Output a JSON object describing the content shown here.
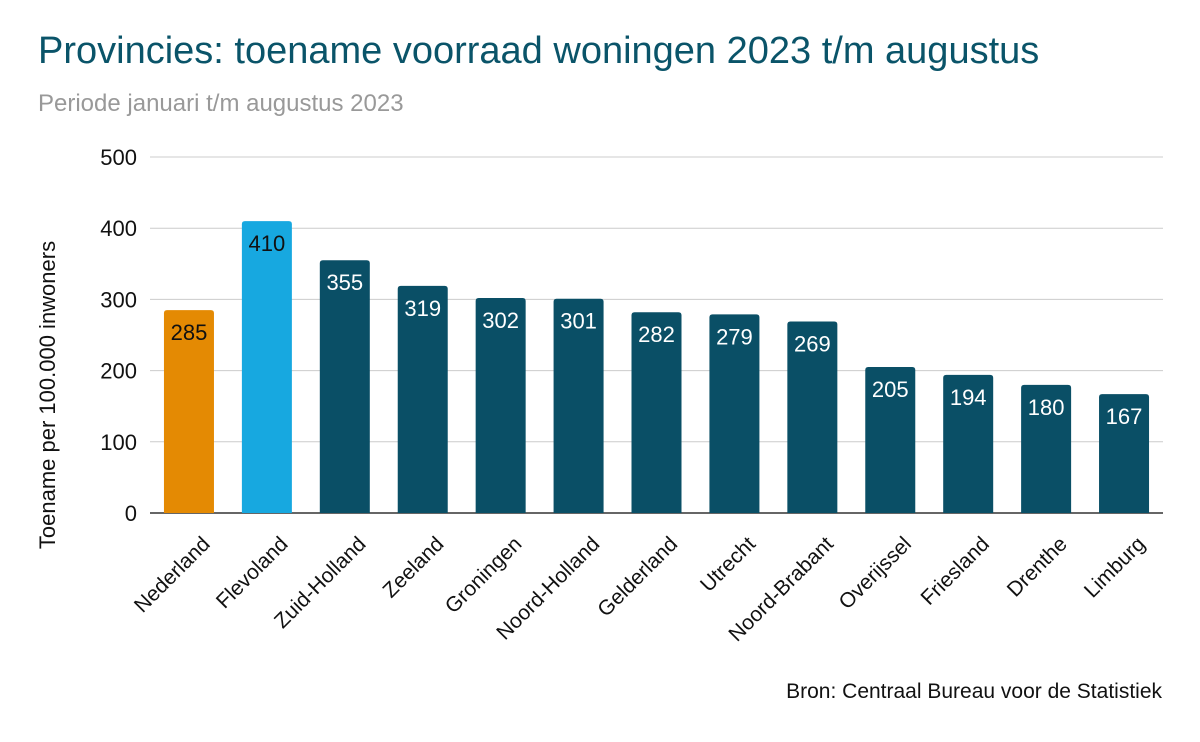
{
  "header": {
    "title": "Provincies: toename voorraad woningen 2023 t/m augustus",
    "subtitle": "Periode januari t/m augustus 2023"
  },
  "footer": {
    "source": "Bron: Centraal Bureau voor de Statistiek"
  },
  "chart_data": {
    "type": "bar",
    "title": "Provincies: toename voorraad woningen 2023 t/m augustus",
    "subtitle": "Periode januari t/m augustus 2023",
    "xlabel": "",
    "ylabel": "Toename per 100.000 inwoners",
    "ylim": [
      0,
      500
    ],
    "yticks": [
      0,
      100,
      200,
      300,
      400,
      500
    ],
    "grid": true,
    "legend": "none",
    "categories": [
      "Nederland",
      "Flevoland",
      "Zuid-Holland",
      "Zeeland",
      "Groningen",
      "Noord-Holland",
      "Gelderland",
      "Utrecht",
      "Noord-Brabant",
      "Overijssel",
      "Friesland",
      "Drenthe",
      "Limburg"
    ],
    "values": [
      285,
      410,
      355,
      319,
      302,
      301,
      282,
      279,
      269,
      205,
      194,
      180,
      167
    ],
    "colors": [
      "#e48a03",
      "#17a8e0",
      "#0a4f66",
      "#0a4f66",
      "#0a4f66",
      "#0a4f66",
      "#0a4f66",
      "#0a4f66",
      "#0a4f66",
      "#0a4f66",
      "#0a4f66",
      "#0a4f66",
      "#0a4f66"
    ],
    "label_colors": [
      "#111111",
      "#111111",
      "#ffffff",
      "#ffffff",
      "#ffffff",
      "#ffffff",
      "#ffffff",
      "#ffffff",
      "#ffffff",
      "#ffffff",
      "#ffffff",
      "#ffffff",
      "#ffffff"
    ],
    "source": "Bron: Centraal Bureau voor de Statistiek"
  }
}
